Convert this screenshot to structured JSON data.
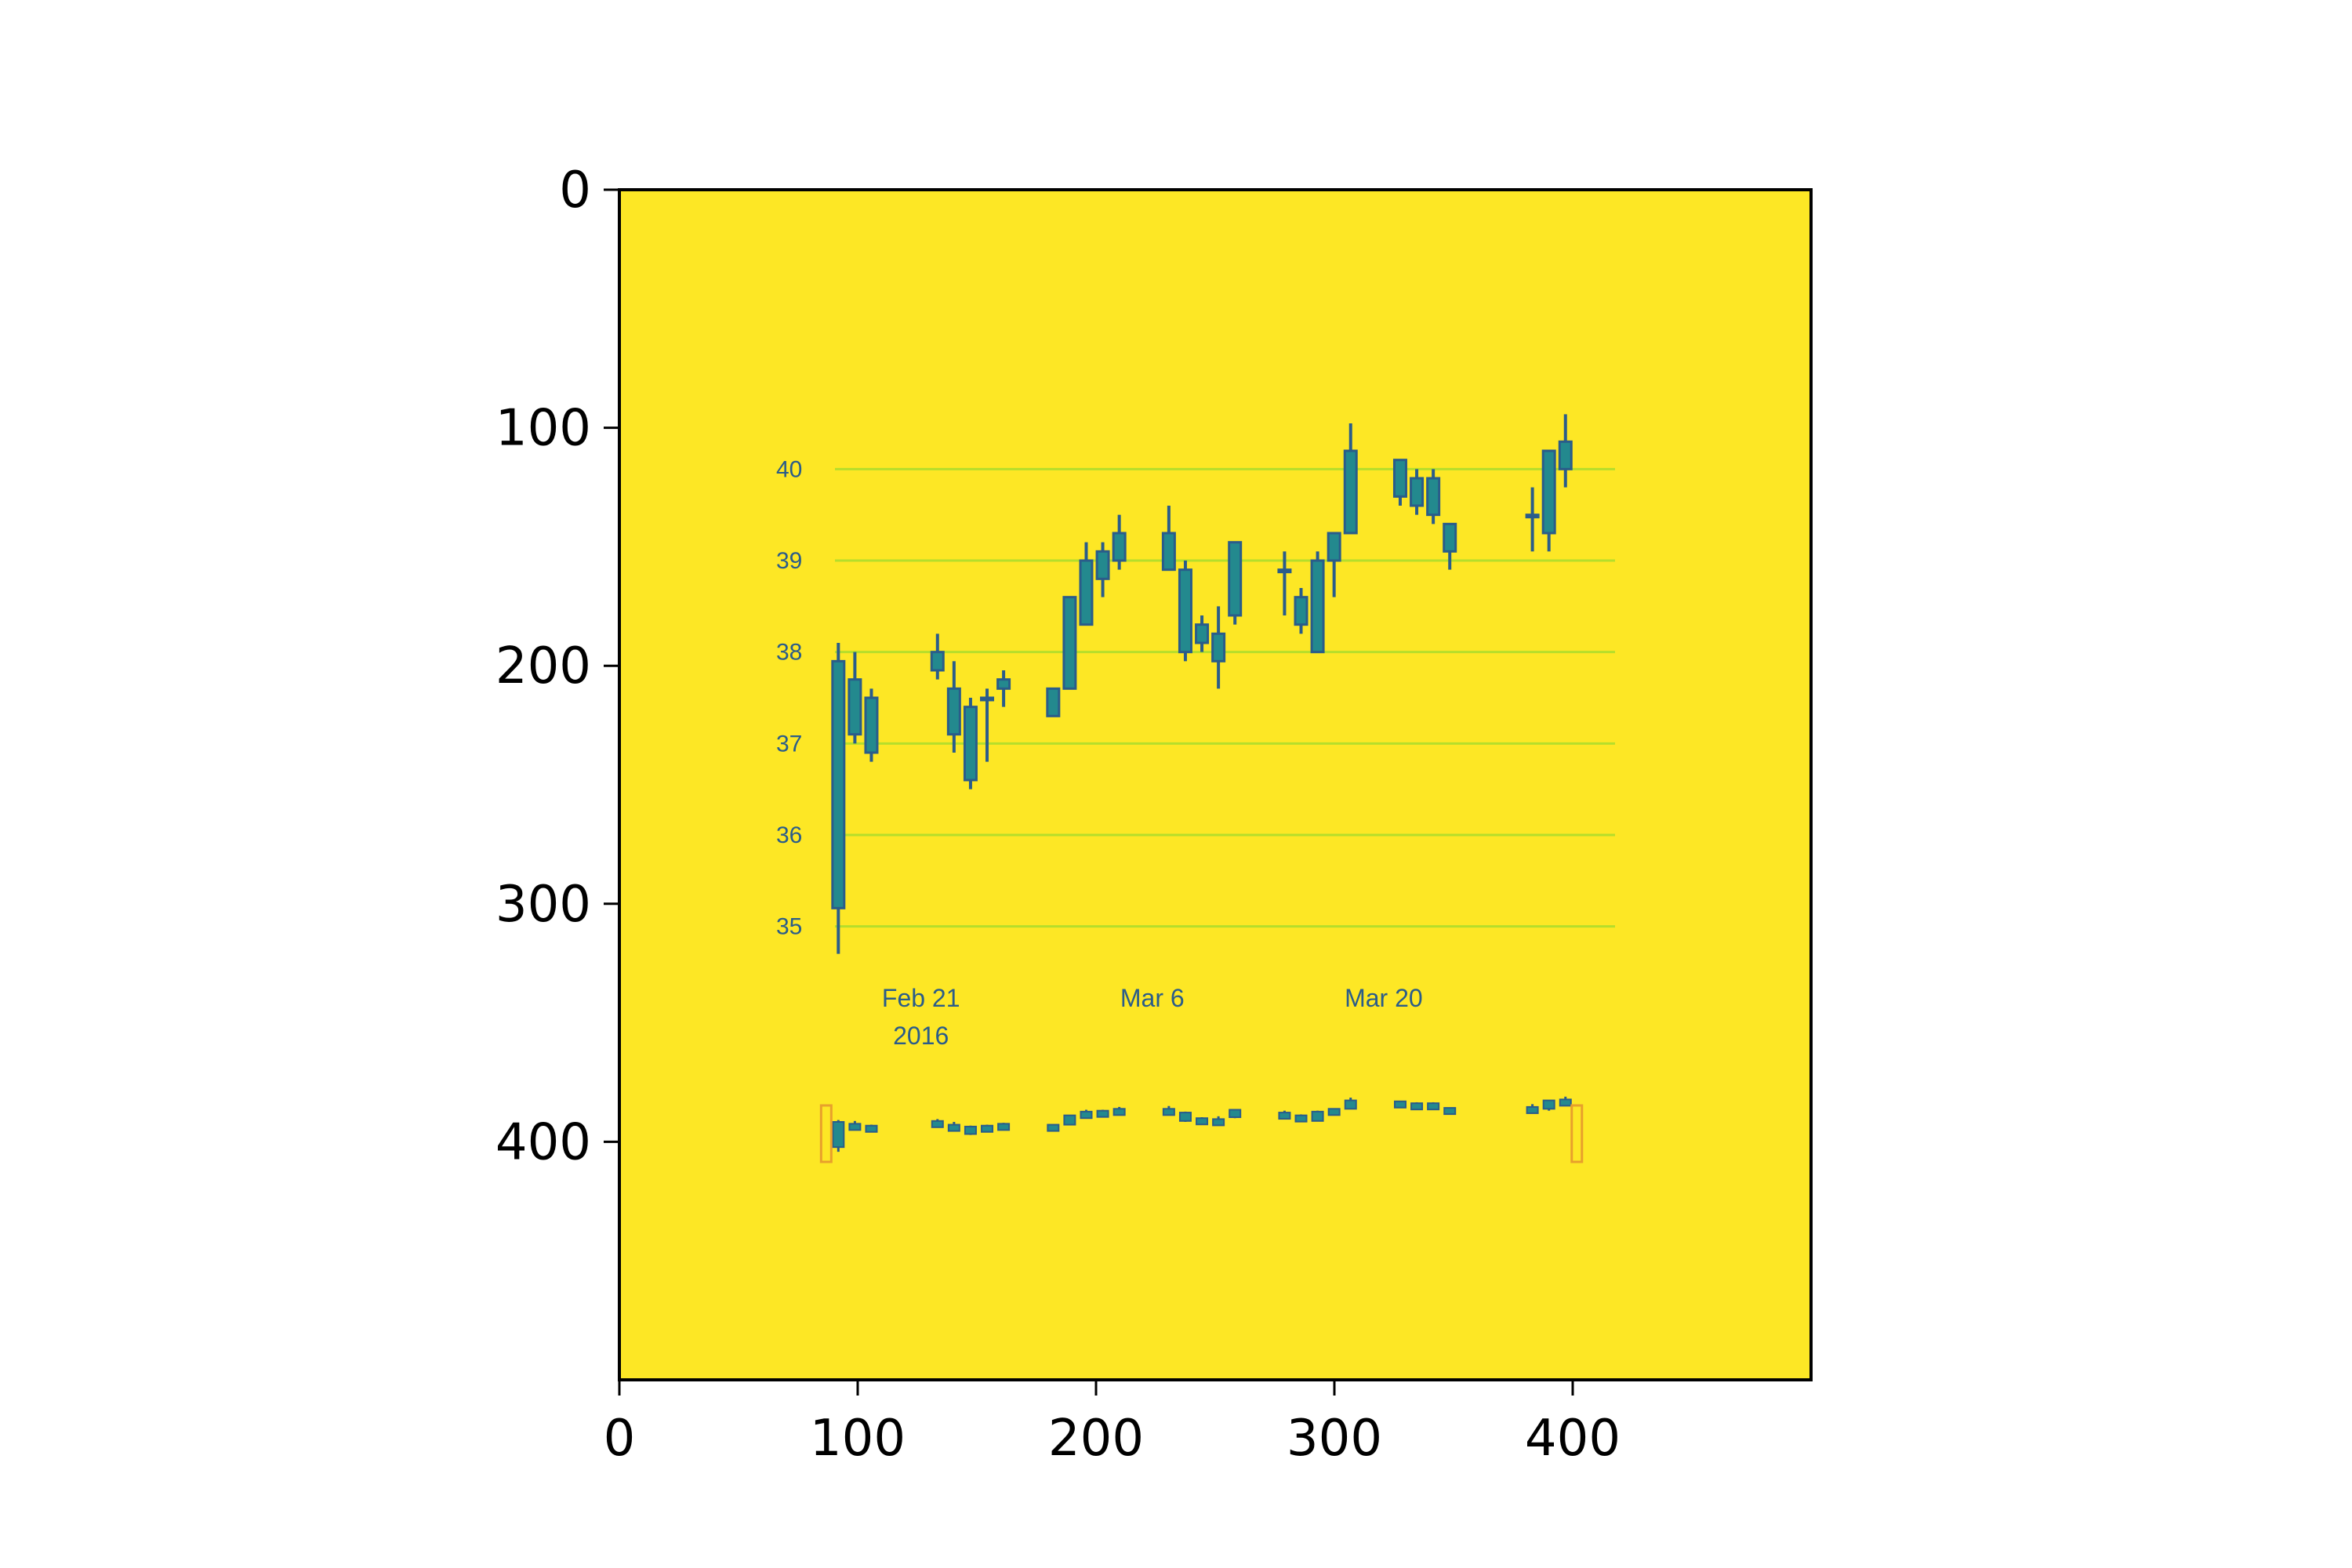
{
  "figure": {
    "outer_axes": {
      "x_ticks": [
        "0",
        "100",
        "200",
        "300",
        "400"
      ],
      "y_ticks": [
        "0",
        "100",
        "200",
        "300",
        "400"
      ],
      "xlim": [
        0,
        500
      ],
      "ylim": [
        500,
        0
      ],
      "image_background": "#fde725"
    }
  },
  "chart_data": {
    "type": "candlestick",
    "title": "",
    "xlabel": "",
    "ylabel": "",
    "y_tick_labels": [
      "40",
      "39",
      "38",
      "37",
      "36",
      "35"
    ],
    "y_ticks_values": [
      40,
      39,
      38,
      37,
      36,
      35
    ],
    "ylim": [
      34.5,
      40.5
    ],
    "x_tick_labels": [
      {
        "date": "2016-02-21",
        "label": "Feb 21",
        "sublabel": "2016"
      },
      {
        "date": "2016-03-06",
        "label": "Mar 6",
        "sublabel": ""
      },
      {
        "date": "2016-03-20",
        "label": "Mar 20",
        "sublabel": ""
      }
    ],
    "xlim": [
      "2016-02-12",
      "2016-04-03"
    ],
    "grid": true,
    "colors": {
      "body": "#23898e",
      "outline": "#2a5c8a",
      "grid": "#b5de2b",
      "navigator_handle": "#e8a02c"
    },
    "candles": [
      {
        "date": "2016-02-16",
        "open": 35.2,
        "high": 38.1,
        "low": 34.7,
        "close": 37.9
      },
      {
        "date": "2016-02-17",
        "open": 37.1,
        "high": 38.0,
        "low": 37.0,
        "close": 37.7
      },
      {
        "date": "2016-02-18",
        "open": 37.5,
        "high": 37.6,
        "low": 36.8,
        "close": 36.9
      },
      {
        "date": "2016-02-22",
        "open": 38.0,
        "high": 38.2,
        "low": 37.7,
        "close": 37.8
      },
      {
        "date": "2016-02-23",
        "open": 37.6,
        "high": 37.9,
        "low": 36.9,
        "close": 37.1
      },
      {
        "date": "2016-02-24",
        "open": 36.6,
        "high": 37.5,
        "low": 36.5,
        "close": 37.4
      },
      {
        "date": "2016-02-25",
        "open": 37.5,
        "high": 37.6,
        "low": 36.8,
        "close": 37.5
      },
      {
        "date": "2016-02-26",
        "open": 37.6,
        "high": 37.8,
        "low": 37.4,
        "close": 37.7
      },
      {
        "date": "2016-02-29",
        "open": 37.3,
        "high": 37.6,
        "low": 37.3,
        "close": 37.6
      },
      {
        "date": "2016-03-01",
        "open": 37.6,
        "high": 38.6,
        "low": 37.6,
        "close": 38.6
      },
      {
        "date": "2016-03-02",
        "open": 38.3,
        "high": 39.2,
        "low": 38.3,
        "close": 39.0
      },
      {
        "date": "2016-03-03",
        "open": 38.8,
        "high": 39.2,
        "low": 38.6,
        "close": 39.1
      },
      {
        "date": "2016-03-04",
        "open": 39.0,
        "high": 39.5,
        "low": 38.9,
        "close": 39.3
      },
      {
        "date": "2016-03-07",
        "open": 39.3,
        "high": 39.6,
        "low": 38.9,
        "close": 38.9
      },
      {
        "date": "2016-03-08",
        "open": 38.9,
        "high": 39.0,
        "low": 37.9,
        "close": 38.0
      },
      {
        "date": "2016-03-09",
        "open": 38.3,
        "high": 38.4,
        "low": 38.0,
        "close": 38.1
      },
      {
        "date": "2016-03-10",
        "open": 38.2,
        "high": 38.5,
        "low": 37.6,
        "close": 37.9
      },
      {
        "date": "2016-03-11",
        "open": 38.4,
        "high": 39.2,
        "low": 38.3,
        "close": 39.2
      },
      {
        "date": "2016-03-14",
        "open": 38.9,
        "high": 39.1,
        "low": 38.4,
        "close": 38.9
      },
      {
        "date": "2016-03-15",
        "open": 38.6,
        "high": 38.7,
        "low": 38.2,
        "close": 38.3
      },
      {
        "date": "2016-03-16",
        "open": 38.0,
        "high": 39.1,
        "low": 38.0,
        "close": 39.0
      },
      {
        "date": "2016-03-17",
        "open": 39.0,
        "high": 39.3,
        "low": 38.6,
        "close": 39.3
      },
      {
        "date": "2016-03-18",
        "open": 39.3,
        "high": 40.5,
        "low": 39.3,
        "close": 40.2
      },
      {
        "date": "2016-03-21",
        "open": 40.1,
        "high": 40.1,
        "low": 39.6,
        "close": 39.7
      },
      {
        "date": "2016-03-22",
        "open": 39.9,
        "high": 40.0,
        "low": 39.5,
        "close": 39.6
      },
      {
        "date": "2016-03-23",
        "open": 39.9,
        "high": 40.0,
        "low": 39.4,
        "close": 39.5
      },
      {
        "date": "2016-03-24",
        "open": 39.4,
        "high": 39.4,
        "low": 38.9,
        "close": 39.1
      },
      {
        "date": "2016-03-29",
        "open": 39.5,
        "high": 39.8,
        "low": 39.1,
        "close": 39.5
      },
      {
        "date": "2016-03-30",
        "open": 39.3,
        "high": 40.2,
        "low": 39.1,
        "close": 40.2
      },
      {
        "date": "2016-03-31",
        "open": 40.0,
        "high": 40.6,
        "low": 39.8,
        "close": 40.3
      }
    ],
    "navigator": {
      "range_start": "2016-02-16",
      "range_end": "2016-03-31"
    }
  }
}
